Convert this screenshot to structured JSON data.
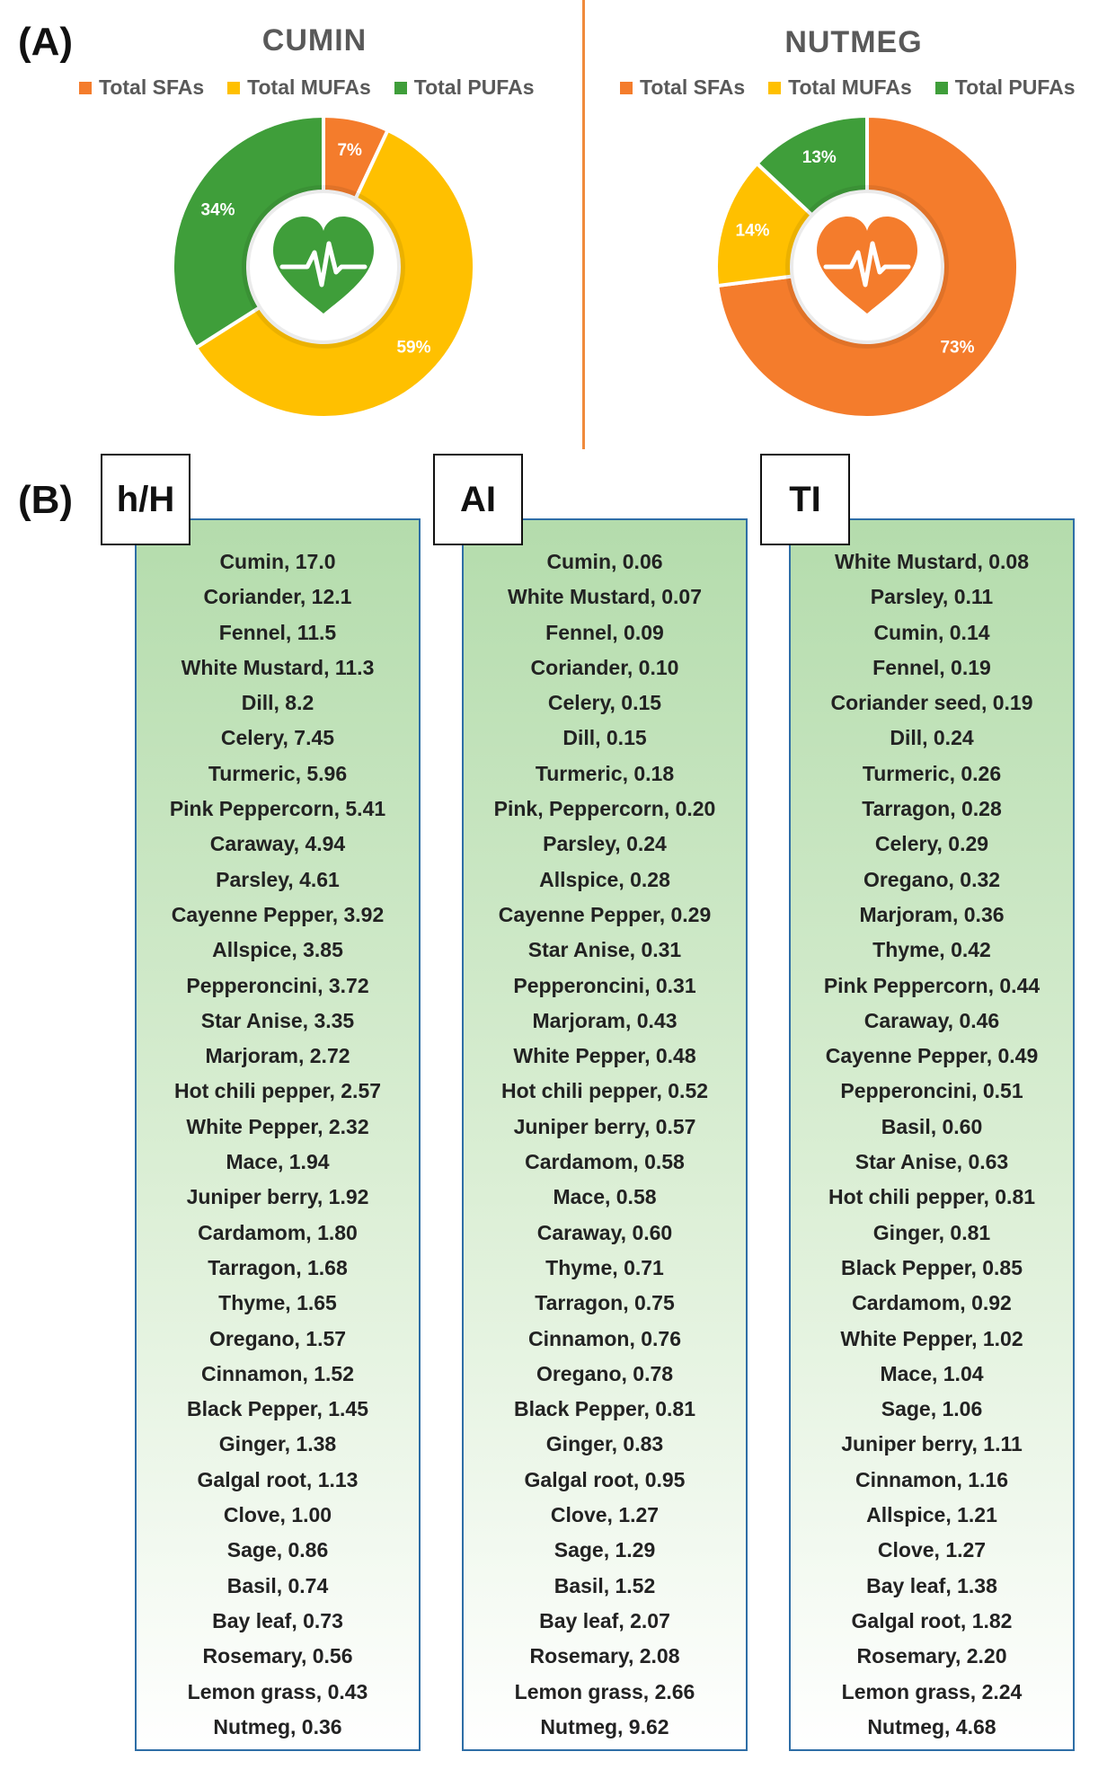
{
  "panel_a_label": "(A)",
  "panel_b_label": "(B)",
  "chart_data": [
    {
      "type": "pie",
      "style": "donut",
      "title": "CUMIN",
      "legend": [
        "Total SFAs",
        "Total MUFAs",
        "Total PUFAs"
      ],
      "categories": [
        "Total SFAs",
        "Total MUFAs",
        "Total PUFAs"
      ],
      "values": [
        7,
        59,
        34
      ],
      "labels": [
        "7%",
        "59%",
        "34%"
      ],
      "colors": [
        "#f47c2c",
        "#ffc000",
        "#3f9e3a"
      ],
      "center_icon": "heart-pulse-icon",
      "center_icon_color": "#3f9e3a"
    },
    {
      "type": "pie",
      "style": "donut",
      "title": "NUTMEG",
      "legend": [
        "Total SFAs",
        "Total MUFAs",
        "Total PUFAs"
      ],
      "categories": [
        "Total SFAs",
        "Total MUFAs",
        "Total PUFAs"
      ],
      "values": [
        73,
        14,
        13
      ],
      "labels": [
        "73%",
        "14%",
        "13%"
      ],
      "colors": [
        "#f47c2c",
        "#ffc000",
        "#3f9e3a"
      ],
      "center_icon": "heart-pulse-icon",
      "center_icon_color": "#f47c2c"
    },
    {
      "type": "table",
      "title": "h/H",
      "rows": [
        "Cumin, 17.0",
        "Coriander, 12.1",
        "Fennel, 11.5",
        "White Mustard, 11.3",
        "Dill, 8.2",
        "Celery, 7.45",
        "Turmeric, 5.96",
        "Pink Peppercorn, 5.41",
        "Caraway, 4.94",
        "Parsley, 4.61",
        "Cayenne Pepper, 3.92",
        "Allspice, 3.85",
        "Pepperoncini, 3.72",
        "Star Anise, 3.35",
        "Marjoram, 2.72",
        "Hot chili pepper, 2.57",
        "White Pepper, 2.32",
        "Mace, 1.94",
        "Juniper berry, 1.92",
        "Cardamom, 1.80",
        "Tarragon, 1.68",
        "Thyme, 1.65",
        "Oregano, 1.57",
        "Cinnamon, 1.52",
        "Black Pepper, 1.45",
        "Ginger, 1.38",
        "Galgal root, 1.13",
        "Clove, 1.00",
        "Sage, 0.86",
        "Basil, 0.74",
        "Bay leaf, 0.73",
        "Rosemary, 0.56",
        "Lemon grass, 0.43",
        "Nutmeg, 0.36"
      ]
    },
    {
      "type": "table",
      "title": "AI",
      "rows": [
        "Cumin, 0.06",
        "White Mustard, 0.07",
        "Fennel, 0.09",
        "Coriander, 0.10",
        "Celery, 0.15",
        "Dill, 0.15",
        "Turmeric, 0.18",
        "Pink, Peppercorn, 0.20",
        "Parsley, 0.24",
        "Allspice, 0.28",
        "Cayenne Pepper, 0.29",
        "Star Anise, 0.31",
        "Pepperoncini, 0.31",
        "Marjoram, 0.43",
        "White Pepper, 0.48",
        "Hot chili pepper, 0.52",
        "Juniper berry, 0.57",
        "Cardamom, 0.58",
        "Mace, 0.58",
        "Caraway, 0.60",
        "Thyme, 0.71",
        "Tarragon, 0.75",
        "Cinnamon, 0.76",
        "Oregano, 0.78",
        "Black Pepper, 0.81",
        "Ginger, 0.83",
        "Galgal root, 0.95",
        "Clove, 1.27",
        "Sage, 1.29",
        "Basil, 1.52",
        "Bay leaf, 2.07",
        "Rosemary, 2.08",
        "Lemon grass, 2.66",
        "Nutmeg, 9.62"
      ]
    },
    {
      "type": "table",
      "title": "TI",
      "rows": [
        "White Mustard, 0.08",
        "Parsley, 0.11",
        "Cumin, 0.14",
        "Fennel, 0.19",
        "Coriander seed, 0.19",
        "Dill, 0.24",
        "Turmeric, 0.26",
        "Tarragon, 0.28",
        "Celery, 0.29",
        "Oregano, 0.32",
        "Marjoram, 0.36",
        "Thyme, 0.42",
        "Pink Peppercorn, 0.44",
        "Caraway, 0.46",
        "Cayenne Pepper, 0.49",
        "Pepperoncini, 0.51",
        "Basil, 0.60",
        "Star Anise, 0.63",
        "Hot chili pepper, 0.81",
        "Ginger, 0.81",
        "Black Pepper, 0.85",
        "Cardamom, 0.92",
        "White Pepper, 1.02",
        "Mace, 1.04",
        "Sage, 1.06",
        "Juniper berry, 1.11",
        "Cinnamon, 1.16",
        "Allspice, 1.21",
        "Clove, 1.27",
        "Bay leaf, 1.38",
        "Galgal root, 1.82",
        "Rosemary, 2.20",
        "Lemon grass, 2.24",
        "Nutmeg, 4.68"
      ]
    }
  ]
}
